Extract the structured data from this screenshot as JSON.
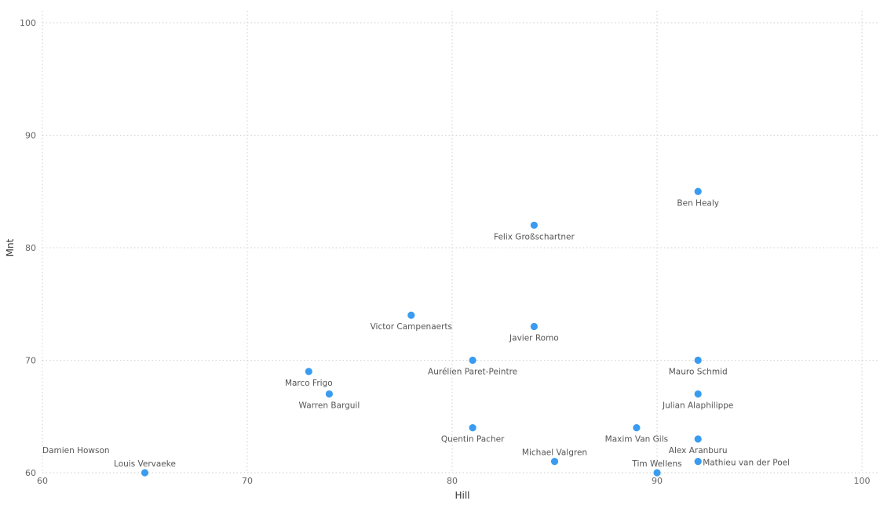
{
  "chart_data": {
    "type": "scatter",
    "title": "",
    "xlabel": "Hill",
    "ylabel": "Mnt",
    "xlim": [
      60,
      100
    ],
    "ylim": [
      60,
      100
    ],
    "xticks": [
      60,
      70,
      80,
      90,
      100
    ],
    "yticks": [
      60,
      70,
      80,
      90,
      100
    ],
    "grid": true,
    "point_color": "#3a9cf0",
    "points": [
      {
        "label": "Ben Healy",
        "x": 92,
        "y": 85
      },
      {
        "label": "Felix Großschartner",
        "x": 84,
        "y": 82
      },
      {
        "label": "Victor Campenaerts",
        "x": 78,
        "y": 74
      },
      {
        "label": "Javier Romo",
        "x": 84,
        "y": 73
      },
      {
        "label": "Aurélien Paret-Peintre",
        "x": 81,
        "y": 70
      },
      {
        "label": "Mauro Schmid",
        "x": 92,
        "y": 70
      },
      {
        "label": "Marco Frigo",
        "x": 73,
        "y": 69
      },
      {
        "label": "Warren Barguil",
        "x": 74,
        "y": 67
      },
      {
        "label": "Julian Alaphilippe",
        "x": 92,
        "y": 67
      },
      {
        "label": "Quentin Pacher",
        "x": 81,
        "y": 64
      },
      {
        "label": "Maxim Van Gils",
        "x": 89,
        "y": 64
      },
      {
        "label": "Alex Aranburu",
        "x": 92,
        "y": 63
      },
      {
        "label": "Michael Valgren",
        "x": 85,
        "y": 61
      },
      {
        "label": "Mathieu van der Poel",
        "x": 92,
        "y": 61
      },
      {
        "label": "Tim Wellens",
        "x": 90,
        "y": 60
      },
      {
        "label": "Louis Vervaeke",
        "x": 65,
        "y": 60
      },
      {
        "label": "Damien Howson",
        "x": 60,
        "y": 60
      }
    ]
  }
}
